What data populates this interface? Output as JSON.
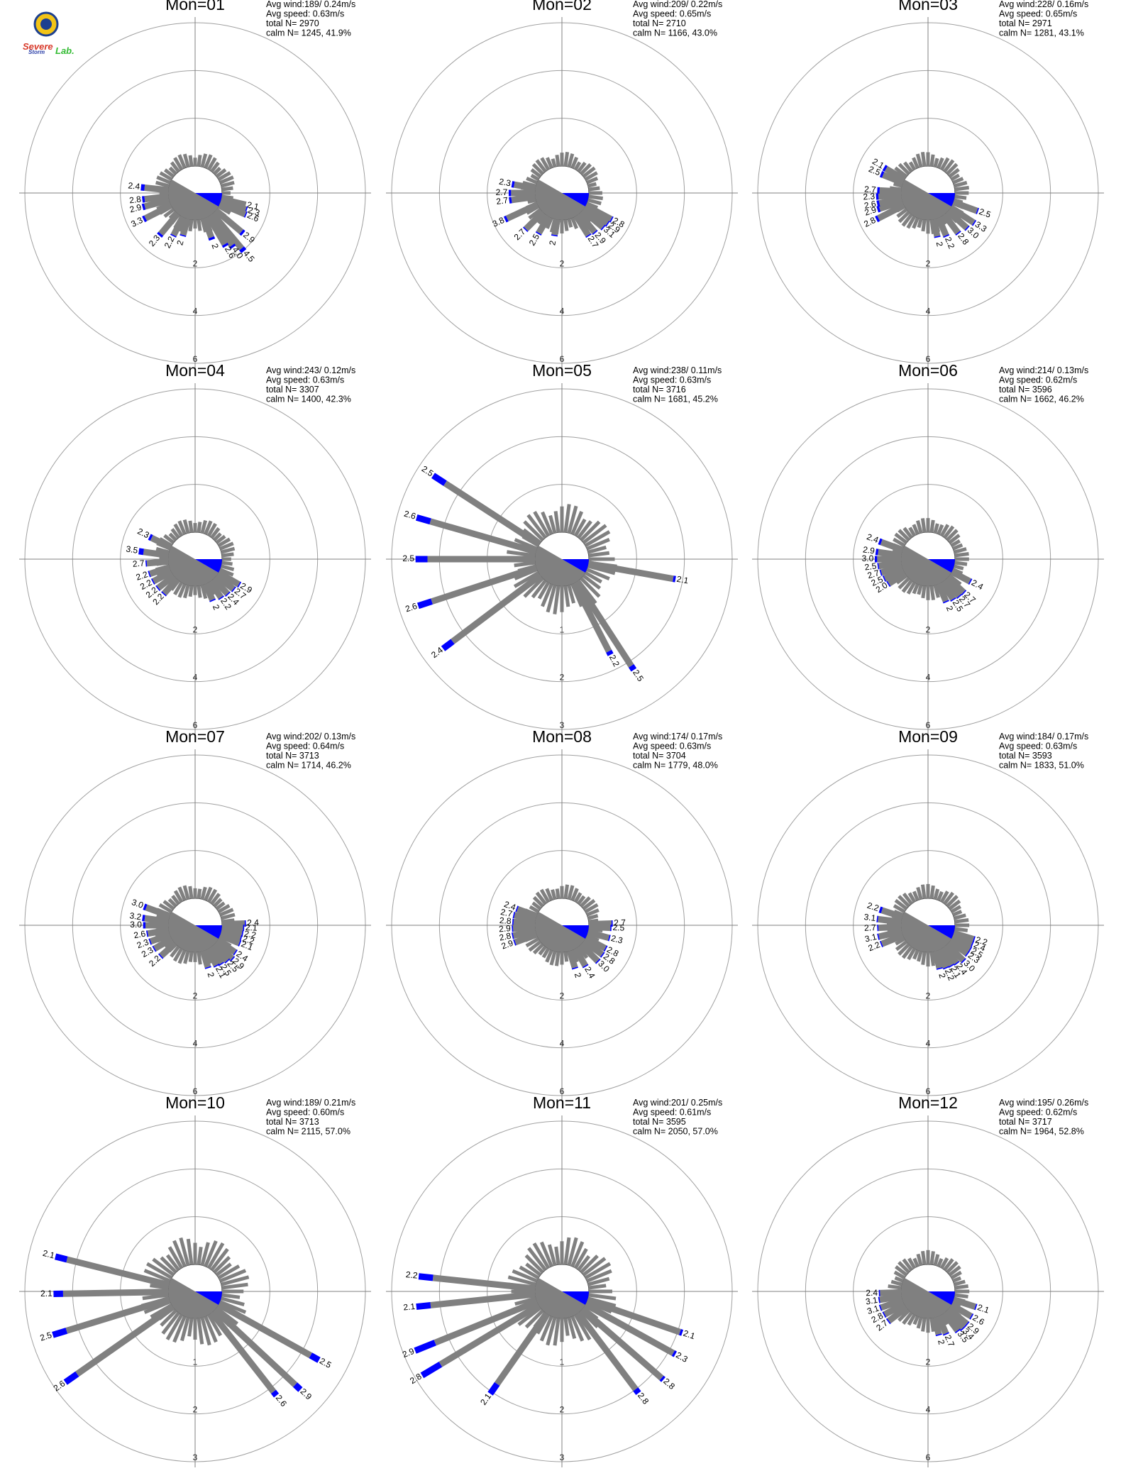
{
  "logo": {
    "text_severe": "Severe",
    "text_storm": "Storm",
    "text_lab": "Lab.",
    "colors": {
      "severe": "#d83a2a",
      "storm": "#2a3ea8",
      "lab": "#33bb33",
      "seal": "#1c3f8f",
      "seal_fill": "#f3c417"
    }
  },
  "colors": {
    "low_speed": "#808080",
    "mid_speed": "#0000ff",
    "high_speed": "#22bb22",
    "ring": "#a0a0a0",
    "axis": "#808080",
    "calm": "#808080"
  },
  "chart_data": [
    {
      "type": "polar-bar",
      "title": "Mon=01",
      "rings": [
        2,
        4,
        6
      ],
      "stats": {
        "avg_wind": "Avg wind:189/ 0.24m/s",
        "avg_speed": "Avg speed: 0.63m/s",
        "total_n": "total N=       2970",
        "calm_n": "calm N=   1245,  41.9%"
      },
      "bars": [
        [
          103,
          1.05,
          0,
          "2.1"
        ],
        [
          108,
          1.1,
          0.05,
          "2.3"
        ],
        [
          113,
          1.15,
          0.05,
          "2.6"
        ],
        [
          130,
          1.4,
          0.1,
          "2.9"
        ],
        [
          140,
          1.9,
          0.15,
          "4.5"
        ],
        [
          145,
          1.55,
          0.1,
          "4.0"
        ],
        [
          150,
          1.35,
          0.1,
          "2.6"
        ],
        [
          160,
          0.85,
          0.1,
          "2"
        ],
        [
          196,
          0.7,
          0.05,
          "2"
        ],
        [
          207,
          0.85,
          0.05,
          "2.2"
        ],
        [
          220,
          1.1,
          0.1,
          "2.3"
        ],
        [
          243,
          1.2,
          0.1,
          "3.3"
        ],
        [
          255,
          1.05,
          0.1,
          "2.9"
        ],
        [
          263,
          1.0,
          0.1,
          "2.8"
        ],
        [
          276,
          1.0,
          0.15,
          "2.4"
        ]
      ],
      "bar_labels": [
        "2.1",
        "2.3",
        "2.6",
        "2.9",
        "4.5",
        "4.0",
        "2.6",
        "2",
        "2",
        "2.2",
        "2.3",
        "3.3",
        "2.9",
        "2.8",
        "2.4"
      ]
    },
    {
      "type": "polar-bar",
      "title": "Mon=02",
      "rings": [
        2,
        4,
        6
      ],
      "stats": {
        "avg_wind": "Avg wind:209/ 0.22m/s",
        "avg_speed": "Avg speed: 0.65m/s",
        "total_n": "total N=       2710",
        "calm_n": "calm N=   1166,  43.0%"
      },
      "bars": [
        [
          118,
          1.2,
          0.05,
          "2.8"
        ],
        [
          124,
          1.15,
          0.05,
          "2.9"
        ],
        [
          130,
          1.1,
          0.05,
          "3.1"
        ],
        [
          140,
          1.0,
          0.05,
          "2.9"
        ],
        [
          148,
          0.95,
          0.05,
          "2.7"
        ],
        [
          190,
          0.65,
          0.05,
          "2"
        ],
        [
          210,
          0.8,
          0.05,
          "2.5"
        ],
        [
          225,
          1.0,
          0.05,
          "2.7"
        ],
        [
          245,
          1.4,
          0.1,
          "3.8"
        ],
        [
          262,
          1.0,
          0.1,
          "2.7"
        ],
        [
          270,
          1.0,
          0.1,
          "2.7"
        ],
        [
          280,
          0.9,
          0.1,
          "2.3"
        ]
      ],
      "bar_labels": [
        "2.8",
        "2.9",
        "3.1",
        "2.9",
        "2.7",
        "2",
        "2.5",
        "2.7",
        "3.8",
        "2.7",
        "2.7",
        "2.3"
      ]
    },
    {
      "type": "polar-bar",
      "title": "Mon=03",
      "rings": [
        2,
        4,
        6
      ],
      "stats": {
        "avg_wind": "Avg wind:228/ 0.16m/s",
        "avg_speed": "Avg speed: 0.65m/s",
        "total_n": "total N=       2971",
        "calm_n": "calm N=   1281,  43.1%"
      },
      "bars": [
        [
          110,
          1.05,
          0.05,
          "2.5"
        ],
        [
          123,
          1.15,
          0.05,
          "3.3"
        ],
        [
          132,
          1.05,
          0.05,
          "3.0"
        ],
        [
          143,
          0.95,
          0.05,
          "2.8"
        ],
        [
          157,
          0.8,
          0.05,
          "2.2"
        ],
        [
          168,
          0.72,
          0.05,
          "2"
        ],
        [
          243,
          1.2,
          0.1,
          "2.8"
        ],
        [
          252,
          1.0,
          0.1,
          "2.9"
        ],
        [
          258,
          0.95,
          0.1,
          "2.6"
        ],
        [
          266,
          0.95,
          0.1,
          "2.3"
        ],
        [
          273,
          0.9,
          0.1,
          "2.7"
        ],
        [
          292,
          0.9,
          0.1,
          "2.5"
        ],
        [
          300,
          0.9,
          0.1,
          "2.1"
        ]
      ],
      "bar_labels": [
        "2.5",
        "3.3",
        "3.0",
        "2.8",
        "2.2",
        "2",
        "2.8",
        "2.9",
        "2.6",
        "2.3",
        "2.7",
        "2.5",
        "2.1"
      ]
    },
    {
      "type": "polar-bar",
      "title": "Mon=04",
      "rings": [
        2,
        4,
        6
      ],
      "stats": {
        "avg_wind": "Avg wind:243/ 0.12m/s",
        "avg_speed": "Avg speed: 0.63m/s",
        "total_n": "total N=       3307",
        "calm_n": "calm N=   1400,  42.3%"
      },
      "bars": [
        [
          120,
          0.98,
          0.05,
          "2.9"
        ],
        [
          128,
          0.9,
          0.05,
          "2.7"
        ],
        [
          137,
          0.85,
          0.05,
          "2.4"
        ],
        [
          146,
          0.8,
          0.05,
          "2.2"
        ],
        [
          157,
          0.72,
          0.05,
          "2"
        ],
        [
          222,
          0.8,
          0.05,
          "2.2"
        ],
        [
          232,
          0.82,
          0.05,
          "2.2"
        ],
        [
          242,
          0.84,
          0.05,
          "2.2"
        ],
        [
          252,
          0.86,
          0.05,
          "2.2"
        ],
        [
          265,
          0.9,
          0.05,
          "2.7"
        ],
        [
          278,
          1.05,
          0.2,
          "3.5"
        ],
        [
          296,
          0.9,
          0.1,
          "2.3"
        ]
      ],
      "bar_labels": [
        "2.9",
        "2.7",
        "2.4",
        "2.2",
        "2",
        "2.2",
        "2.2",
        "2.2",
        "2.2",
        "2.7",
        "3.5",
        "2.3"
      ]
    },
    {
      "type": "polar-bar",
      "title": "Mon=05",
      "rings": [
        1,
        2,
        3
      ],
      "stats": {
        "avg_wind": "Avg wind:238/ 0.11m/s",
        "avg_speed": "Avg speed: 0.63m/s",
        "total_n": "total N=       3716",
        "calm_n": "calm N=   1681,  45.2%"
      },
      "bars": [
        [
          100,
          1.8,
          0.05,
          "2.1"
        ],
        [
          147,
          2.1,
          0.1,
          "2.5"
        ],
        [
          153,
          1.6,
          0.08,
          "2.2"
        ],
        [
          233,
          2.3,
          0.25,
          "2.4"
        ],
        [
          252,
          2.3,
          0.3,
          "2.6"
        ],
        [
          270,
          2.25,
          0.25,
          "2.5"
        ],
        [
          286,
          2.3,
          0.3,
          "2.6"
        ],
        [
          303,
          2.35,
          0.3,
          "2.5"
        ]
      ],
      "bar_labels": [
        "2.1",
        "2.5",
        "2.2",
        "2.4",
        "2.6",
        "2.5",
        "2.6",
        "2.5"
      ]
    },
    {
      "type": "polar-bar",
      "title": "Mon=06",
      "rings": [
        2,
        4,
        6
      ],
      "stats": {
        "avg_wind": "Avg wind:214/ 0.13m/s",
        "avg_speed": "Avg speed: 0.62m/s",
        "total_n": "total N=       3596",
        "calm_n": "calm N=   1662,  46.2%"
      },
      "bars": [
        [
          118,
          0.85,
          0.05,
          "2.4"
        ],
        [
          133,
          0.9,
          0.05,
          "2.7"
        ],
        [
          140,
          0.88,
          0.05,
          "2.7"
        ],
        [
          148,
          0.84,
          0.05,
          "2.5"
        ],
        [
          157,
          0.78,
          0.05,
          "2"
        ],
        [
          238,
          0.8,
          0.05,
          "2.0"
        ],
        [
          246,
          0.85,
          0.05,
          "2.5"
        ],
        [
          254,
          0.9,
          0.05,
          "2.7"
        ],
        [
          262,
          0.95,
          0.05,
          "2.5"
        ],
        [
          270,
          1.0,
          0.1,
          "3.0"
        ],
        [
          278,
          0.98,
          0.1,
          "2.9"
        ],
        [
          290,
          0.95,
          0.1,
          "2.4"
        ]
      ],
      "bar_labels": [
        "2.4",
        "2.7",
        "2.7",
        "2.5",
        "2",
        "2.0",
        "2.5",
        "2.7",
        "2.5",
        "3.0",
        "2.9",
        "2.4"
      ]
    },
    {
      "type": "polar-bar",
      "title": "Mon=07",
      "rings": [
        2,
        4,
        6
      ],
      "stats": {
        "avg_wind": "Avg wind:202/ 0.13m/s",
        "avg_speed": "Avg speed: 0.64m/s",
        "total_n": "total N=       3713",
        "calm_n": "calm N=   1714,  46.2%"
      },
      "bars": [
        [
          88,
          0.95,
          0.05,
          "2.4"
        ],
        [
          93,
          0.88,
          0.05,
          "2.1"
        ],
        [
          100,
          0.86,
          0.05,
          "2.2"
        ],
        [
          106,
          0.84,
          0.05,
          "2.2"
        ],
        [
          112,
          0.86,
          0.05,
          "2.1"
        ],
        [
          124,
          0.88,
          0.05,
          "2.4"
        ],
        [
          132,
          0.95,
          0.05,
          "2.9"
        ],
        [
          138,
          0.86,
          0.05,
          "2.5"
        ],
        [
          146,
          0.8,
          0.05,
          "2.5"
        ],
        [
          152,
          0.76,
          0.05,
          "2.1"
        ],
        [
          163,
          0.7,
          0.05,
          "2"
        ],
        [
          228,
          0.78,
          0.05,
          "2.2"
        ],
        [
          240,
          0.82,
          0.05,
          "2.3"
        ],
        [
          250,
          0.85,
          0.05,
          "2.3"
        ],
        [
          260,
          0.88,
          0.05,
          "2.6"
        ],
        [
          270,
          0.95,
          0.1,
          "3.0"
        ],
        [
          278,
          1.0,
          0.1,
          "3.2"
        ],
        [
          290,
          1.05,
          0.1,
          "3.0"
        ]
      ],
      "bar_labels": [
        "2.4",
        "2.1",
        "2.2",
        "2.2",
        "2.1",
        "2.4",
        "2.9",
        "2.5",
        "2.5",
        "2.1",
        "2",
        "2.2",
        "2.3",
        "2.3",
        "2.6",
        "3.0",
        "3.2",
        "3.0"
      ]
    },
    {
      "type": "polar-bar",
      "title": "Mon=08",
      "rings": [
        2,
        4,
        6
      ],
      "stats": {
        "avg_wind": "Avg wind:174/ 0.17m/s",
        "avg_speed": "Avg speed: 0.63m/s",
        "total_n": "total N=       3704",
        "calm_n": "calm N=   1779,  48.0%"
      },
      "bars": [
        [
          88,
          0.95,
          0.05,
          "2.7"
        ],
        [
          93,
          0.9,
          0.05,
          "2.5"
        ],
        [
          105,
          0.9,
          0.05,
          "2.3"
        ],
        [
          118,
          0.92,
          0.05,
          "2.8"
        ],
        [
          126,
          0.95,
          0.05,
          "2.8"
        ],
        [
          135,
          0.98,
          0.05,
          "3.0"
        ],
        [
          150,
          0.82,
          0.05,
          "2.4"
        ],
        [
          163,
          0.72,
          0.05,
          "2"
        ],
        [
          250,
          0.95,
          0.05,
          "2.9"
        ],
        [
          258,
          0.95,
          0.05,
          "2.8"
        ],
        [
          266,
          0.92,
          0.05,
          "2.9"
        ],
        [
          274,
          0.9,
          0.05,
          "2.8"
        ],
        [
          282,
          0.9,
          0.05,
          "2.7"
        ],
        [
          290,
          0.85,
          0.05,
          "2.4"
        ]
      ],
      "bar_labels": [
        "2.7",
        "2.5",
        "2.3",
        "2.8",
        "2.8",
        "3.0",
        "2.4",
        "2",
        "2.9",
        "2.8",
        "2.9",
        "2.8",
        "2.7",
        "2.4"
      ]
    },
    {
      "type": "polar-bar",
      "title": "Mon=09",
      "rings": [
        2,
        4,
        6
      ],
      "stats": {
        "avg_wind": "Avg wind:184/ 0.17m/s",
        "avg_speed": "Avg speed: 0.63m/s",
        "total_n": "total N=       3593",
        "calm_n": "calm N=   1833,  51.0%"
      },
      "bars": [
        [
          107,
          0.86,
          0.05,
          "2.2"
        ],
        [
          113,
          0.86,
          0.05,
          "2.4"
        ],
        [
          120,
          0.88,
          0.05,
          "2.5"
        ],
        [
          126,
          0.88,
          0.05,
          "2.3"
        ],
        [
          135,
          0.95,
          0.05,
          "3.0"
        ],
        [
          143,
          0.84,
          0.05,
          "2.4"
        ],
        [
          150,
          0.8,
          0.05,
          "2.1"
        ],
        [
          157,
          0.78,
          0.05,
          "2.2"
        ],
        [
          165,
          0.72,
          0.05,
          "2"
        ],
        [
          248,
          0.95,
          0.05,
          "2.2"
        ],
        [
          257,
          0.98,
          0.05,
          "3.1"
        ],
        [
          267,
          0.95,
          0.05,
          "2.7"
        ],
        [
          277,
          0.98,
          0.05,
          "3.1"
        ],
        [
          288,
          0.9,
          0.1,
          "2.2"
        ]
      ],
      "bar_labels": [
        "2.2",
        "2.4",
        "2.5",
        "2.3",
        "3.0",
        "2.4",
        "2.1",
        "2.2",
        "2",
        "2.2",
        "3.1",
        "2.7",
        "3.1",
        "2.2"
      ]
    },
    {
      "type": "polar-bar",
      "title": "Mon=10",
      "rings": [
        1,
        2,
        3
      ],
      "stats": {
        "avg_wind": "Avg wind:189/ 0.21m/s",
        "avg_speed": "Avg speed: 0.60m/s",
        "total_n": "total N=       3713",
        "calm_n": "calm N=   2115,  57.0%"
      },
      "bars": [
        [
          119,
          2.2,
          0.2,
          "2.5"
        ],
        [
          133,
          2.3,
          0.15,
          "2.9"
        ],
        [
          142,
          2.1,
          0.1,
          "2.6"
        ],
        [
          235,
          2.45,
          0.3,
          "2.6"
        ],
        [
          253,
          2.25,
          0.3,
          "2.5"
        ],
        [
          269,
          2.2,
          0.2,
          "2.1"
        ],
        [
          284,
          2.2,
          0.25,
          "2.1"
        ]
      ],
      "bar_labels": [
        "2.5",
        "2.9",
        "2.6",
        "2.6",
        "2.5",
        "2.1",
        "2.1"
      ]
    },
    {
      "type": "polar-bar",
      "title": "Mon=11",
      "rings": [
        1,
        2,
        3
      ],
      "stats": {
        "avg_wind": "Avg wind:201/ 0.25m/s",
        "avg_speed": "Avg speed: 0.61m/s",
        "total_n": "total N=       3595",
        "calm_n": "calm N=   2050,  57.0%"
      },
      "bars": [
        [
          109,
          2.05,
          0.05,
          "2.1"
        ],
        [
          119,
          2.1,
          0.05,
          "2.3"
        ],
        [
          131,
          2.2,
          0.05,
          "2.8"
        ],
        [
          143,
          2.0,
          0.1,
          "2.8"
        ],
        [
          215,
          1.8,
          0.25,
          "2.1"
        ],
        [
          239,
          2.4,
          0.45,
          "2.8"
        ],
        [
          248,
          2.3,
          0.45,
          "2.9"
        ],
        [
          264,
          2.2,
          0.3,
          "2.1"
        ],
        [
          276,
          2.15,
          0.3,
          "2.2"
        ]
      ],
      "bar_labels": [
        "2.1",
        "2.3",
        "2.8",
        "2.8",
        "2.1",
        "2.8",
        "2.9",
        "2.1",
        "2.2"
      ]
    },
    {
      "type": "polar-bar",
      "title": "Mon=12",
      "rings": [
        2,
        4,
        6
      ],
      "stats": {
        "avg_wind": "Avg wind:195/ 0.26m/s",
        "avg_speed": "Avg speed: 0.62m/s",
        "total_n": "total N=       3717",
        "calm_n": "calm N=   1964,  52.8%"
      },
      "bars": [
        [
          108,
          0.95,
          0.05,
          "2.1"
        ],
        [
          120,
          0.95,
          0.05,
          "2.6"
        ],
        [
          130,
          0.98,
          0.05,
          "2.9"
        ],
        [
          137,
          0.98,
          0.05,
          "3.4"
        ],
        [
          143,
          0.92,
          0.05,
          "3.5"
        ],
        [
          157,
          0.78,
          0.05,
          "2.7"
        ],
        [
          166,
          0.72,
          0.05,
          "2"
        ],
        [
          233,
          0.92,
          0.05,
          "2.7"
        ],
        [
          242,
          0.92,
          0.05,
          "2.8"
        ],
        [
          251,
          0.95,
          0.05,
          "3.1"
        ],
        [
          260,
          0.92,
          0.05,
          "3.1"
        ],
        [
          268,
          0.88,
          0.05,
          "2.4"
        ]
      ],
      "bar_labels": [
        "2.1",
        "2.6",
        "2.9",
        "3.4",
        "3.5",
        "2.7",
        "2",
        "2.7",
        "2.8",
        "3.1",
        "3.1",
        "2.4"
      ]
    }
  ]
}
